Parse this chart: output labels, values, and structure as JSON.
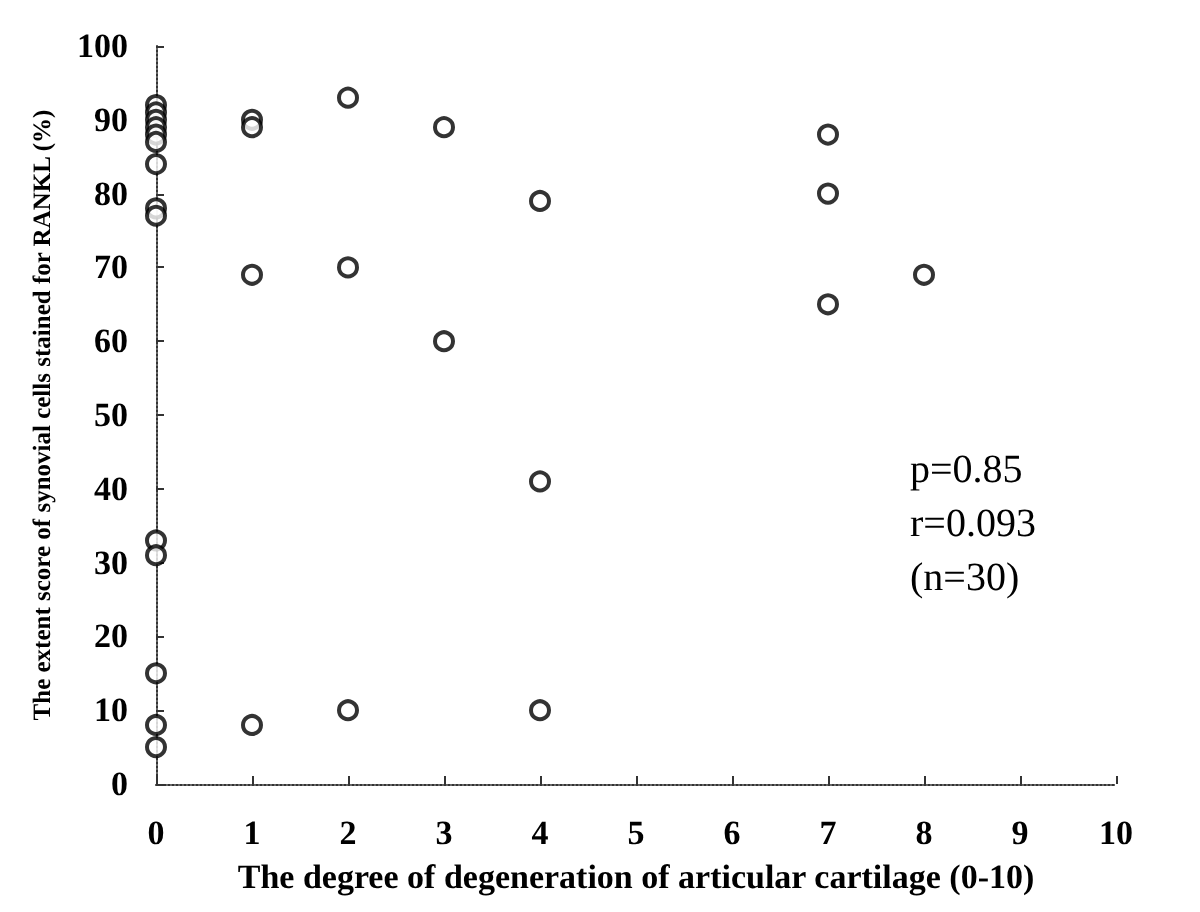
{
  "chart_data": {
    "type": "scatter",
    "xlabel": "The degree of degeneration of articular cartilage (0-10)",
    "ylabel": "The extent score of synovial cells stained for RANKL (%)",
    "x": [
      0,
      0,
      0,
      0,
      0,
      0,
      0,
      0,
      0,
      0,
      0,
      0,
      0,
      0,
      1,
      1,
      1,
      1,
      2,
      2,
      2,
      3,
      3,
      4,
      4,
      4,
      7,
      7,
      7,
      8
    ],
    "values": [
      92,
      91,
      90,
      89,
      88,
      87,
      84,
      78,
      77,
      33,
      31,
      15,
      8,
      5,
      90,
      89,
      69,
      8,
      93,
      70,
      10,
      89,
      60,
      79,
      41,
      10,
      88,
      80,
      65,
      69
    ],
    "color": "#000000",
    "marker": "circle",
    "xlim": [
      0,
      10
    ],
    "xticks": [
      0,
      1,
      2,
      3,
      4,
      5,
      6,
      7,
      8,
      9,
      10
    ],
    "ylim": [
      0,
      100
    ],
    "yticks": [
      0,
      10,
      20,
      30,
      40,
      50,
      60,
      70,
      80,
      90,
      100
    ],
    "grid": false,
    "annotations": [
      "p=0.85",
      "r=0.093",
      "(n=30)"
    ]
  }
}
